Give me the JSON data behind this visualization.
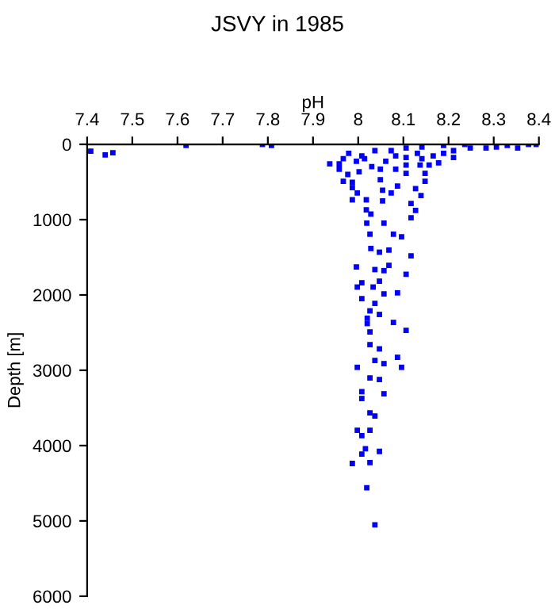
{
  "chart_data": {
    "type": "scatter",
    "title": "JSVY in 1985",
    "xlabel": "pH",
    "ylabel": "Depth [m]",
    "x": [
      7.408,
      7.44,
      7.457,
      7.619,
      7.788,
      7.808,
      7.996,
      8.037,
      8.057,
      8.068,
      8.106,
      8.008,
      8.047,
      7.998,
      8.033,
      8.087,
      8.057,
      8.008,
      8.037,
      8.026,
      8.047,
      8.02,
      8.078,
      8.02,
      8.026,
      8.106,
      8.026,
      8.047,
      8.087,
      8.037,
      8.057,
      7.998,
      8.096,
      8.026,
      8.047,
      8.008,
      8.057,
      8.008,
      8.026,
      8.037,
      7.998,
      8.026,
      8.008,
      8.016,
      8.047,
      8.008,
      7.987,
      8.026,
      8.019,
      8.037,
      7.996,
      7.937,
      7.958,
      7.967,
      7.987,
      7.987,
      7.998,
      7.987,
      8.018,
      8.018,
      8.028,
      8.019,
      8.057,
      8.026,
      8.078,
      8.096,
      8.028,
      8.047,
      8.117,
      8.068,
      8.049,
      8.054,
      8.054,
      8.073,
      8.049,
      8.087,
      8.127,
      8.139,
      8.117,
      8.127,
      8.117,
      8.148,
      8.148,
      8.106,
      8.106,
      8.137,
      8.178,
      8.157,
      7.979,
      8.008,
      8.037,
      8.073,
      8.106,
      8.141,
      8.189,
      8.236,
      8.283,
      8.33,
      8.377,
      8.394,
      8.131,
      8.166,
      8.189,
      8.211,
      8.248,
      8.306,
      8.353,
      7.967,
      7.958,
      8.014,
      8.083,
      8.106,
      8.141,
      8.211,
      8.083,
      8.061,
      8.03,
      8.002,
      7.977
    ],
    "values": [
      91,
      140,
      112,
      14,
      0,
      14,
      1628,
      1663,
      1677,
      1607,
      1726,
      1838,
      1817,
      1895,
      1895,
      1972,
      1986,
      2049,
      2112,
      2211,
      2259,
      2309,
      2365,
      2379,
      2491,
      2470,
      2660,
      2716,
      2828,
      2870,
      2912,
      2961,
      2961,
      3102,
      3123,
      3284,
      3312,
      3375,
      3565,
      3607,
      3796,
      3796,
      3867,
      4042,
      4077,
      4112,
      4238,
      4225,
      4561,
      5053,
      225,
      260,
      330,
      491,
      505,
      575,
      646,
      737,
      737,
      870,
      926,
      1046,
      1046,
      1193,
      1193,
      1228,
      1383,
      1432,
      1481,
      1404,
      470,
      610,
      751,
      646,
      330,
      554,
      589,
      681,
      786,
      877,
      975,
      386,
      491,
      386,
      274,
      274,
      246,
      274,
      119,
      154,
      84,
      84,
      49,
      35,
      14,
      0,
      49,
      14,
      0,
      0,
      119,
      154,
      119,
      84,
      49,
      35,
      49,
      190,
      260,
      190,
      154,
      175,
      190,
      175,
      330,
      225,
      295,
      365,
      400
    ],
    "color": "#0000ff",
    "marker": "square",
    "xlim": [
      7.4,
      8.4
    ],
    "xticks": [
      7.4,
      7.5,
      7.6,
      7.7,
      7.8,
      7.9,
      8,
      8.1,
      8.2,
      8.3,
      8.4
    ],
    "ylim": [
      6000,
      0
    ],
    "yticks": [
      0,
      1000,
      2000,
      3000,
      4000,
      5000,
      6000
    ],
    "grid": false
  }
}
